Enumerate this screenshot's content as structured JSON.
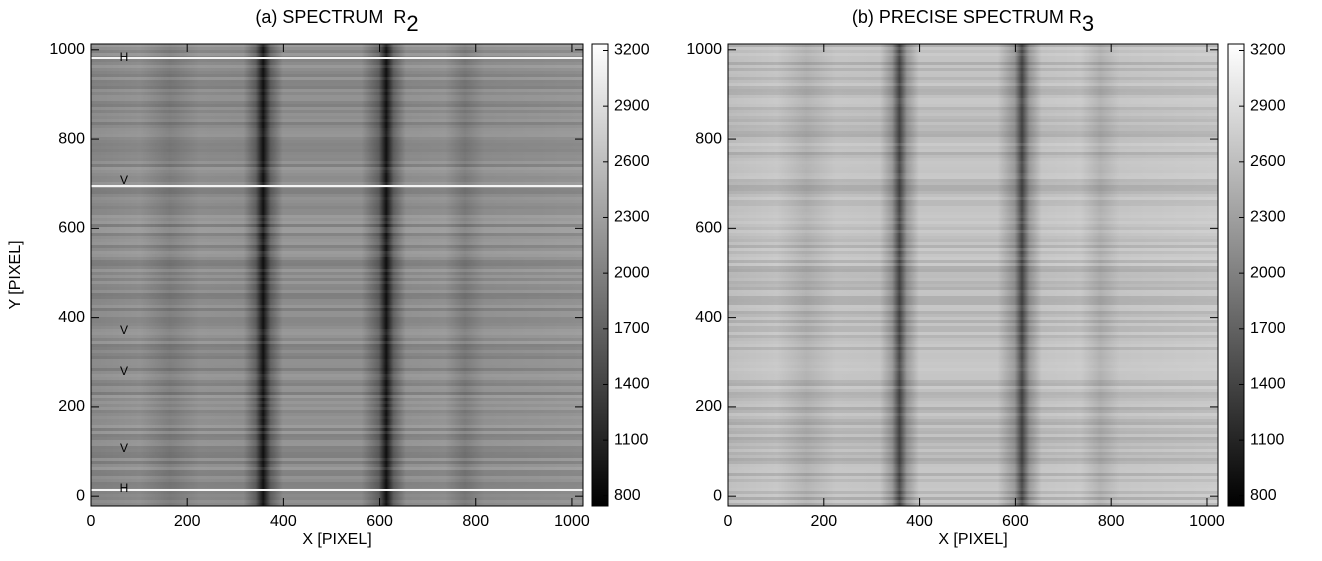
{
  "chart_data": [
    {
      "type": "image",
      "title": "(a) SPECTRUM  R",
      "title_subscript": "2",
      "xlabel": "X [PIXEL]",
      "ylabel": "Y [PIXEL]",
      "xlim": [
        0,
        1023
      ],
      "xticks": [
        0,
        200,
        400,
        600,
        800,
        1000
      ],
      "ylim": [
        -22,
        1013
      ],
      "yticks": [
        0,
        200,
        400,
        600,
        800,
        1000
      ],
      "clim": [
        745,
        3235
      ],
      "cticks": [
        800,
        1100,
        1400,
        1700,
        2000,
        2300,
        2600,
        2900,
        3200
      ],
      "annotations": [
        "H",
        "V",
        "V",
        "V",
        "V",
        "H"
      ]
    },
    {
      "type": "image",
      "title": "(b) PRECISE SPECTRUM R",
      "title_subscript": "3",
      "xlabel": "X [PIXEL]",
      "xlim": [
        0,
        1023
      ],
      "xticks": [
        0,
        200,
        400,
        600,
        800,
        1000
      ],
      "ylim": [
        -22,
        1013
      ],
      "yticks": [
        0,
        200,
        400,
        600,
        800,
        1000
      ],
      "clim": [
        745,
        3235
      ],
      "cticks": [
        800,
        1100,
        1400,
        1700,
        2000,
        2300,
        2600,
        2900,
        3200
      ]
    }
  ]
}
